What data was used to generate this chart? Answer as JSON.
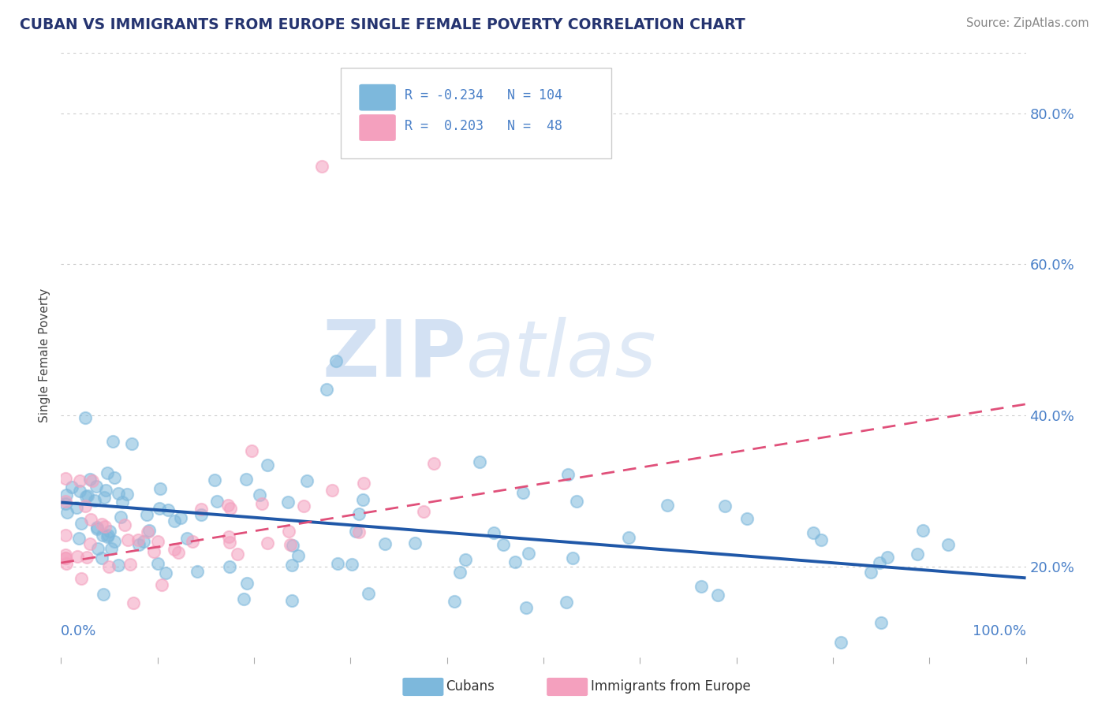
{
  "title": "CUBAN VS IMMIGRANTS FROM EUROPE SINGLE FEMALE POVERTY CORRELATION CHART",
  "source": "Source: ZipAtlas.com",
  "ylabel": "Single Female Poverty",
  "xlim": [
    0,
    1
  ],
  "ylim": [
    0.08,
    0.88
  ],
  "yticks": [
    0.2,
    0.4,
    0.6,
    0.8
  ],
  "ytick_labels": [
    "20.0%",
    "40.0%",
    "60.0%",
    "80.0%"
  ],
  "xtick_left": "0.0%",
  "xtick_right": "100.0%",
  "legend_label1": "Cubans",
  "legend_label2": "Immigrants from Europe",
  "blue_color": "#7db8dc",
  "pink_color": "#f4a0be",
  "blue_line_color": "#2058a8",
  "pink_line_color": "#e0507a",
  "title_color": "#253470",
  "axis_label_color": "#4a80c8",
  "watermark_zip": "ZIP",
  "watermark_atlas": "atlas",
  "blue_trend_x0": 0.0,
  "blue_trend_x1": 1.0,
  "blue_trend_y0": 0.285,
  "blue_trend_y1": 0.185,
  "pink_trend_x0": 0.0,
  "pink_trend_x1": 1.0,
  "pink_trend_y0": 0.205,
  "pink_trend_y1": 0.415
}
